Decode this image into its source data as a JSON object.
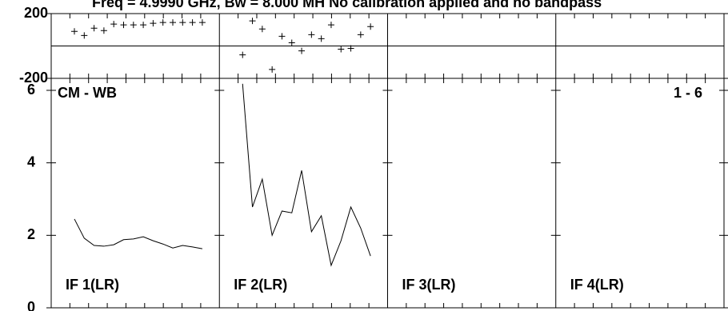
{
  "chart_data": {
    "type": "line",
    "title": "Freq = 4.9990 GHz, Bw = 8.000 MH  No calibration applied and no bandpass",
    "annotations": [
      "CM - WB",
      "1 - 6"
    ],
    "phase": {
      "type": "scatter",
      "ylim": [
        -200,
        200
      ],
      "yticks": [
        -200,
        200
      ]
    },
    "amplitude": {
      "type": "line",
      "ylim": [
        0,
        6
      ],
      "yticks": [
        0,
        2,
        4,
        6
      ]
    },
    "series": [
      {
        "name": "IF 1(LR)",
        "color": "#000000",
        "phase": [
          90,
          65,
          110,
          95,
          135,
          130,
          130,
          130,
          140,
          145,
          145,
          145,
          145,
          145
        ],
        "amplitude": [
          2.45,
          1.92,
          1.72,
          1.7,
          1.74,
          1.88,
          1.9,
          1.96,
          1.85,
          1.76,
          1.65,
          1.72,
          1.68,
          1.63
        ]
      },
      {
        "name": "IF 2(LR)",
        "color": "#000000",
        "phase": [
          -55,
          155,
          105,
          -145,
          60,
          20,
          -30,
          70,
          45,
          130,
          -20,
          -15,
          70,
          120
        ],
        "amplitude": [
          6.18,
          2.78,
          3.55,
          2.0,
          2.67,
          2.62,
          3.79,
          2.1,
          2.54,
          1.17,
          1.85,
          2.78,
          2.2,
          1.43
        ]
      },
      {
        "name": "IF 3(LR)",
        "color": "#000000",
        "phase": [],
        "amplitude": []
      },
      {
        "name": "IF 4(LR)",
        "color": "#000000",
        "phase": [],
        "amplitude": []
      }
    ]
  }
}
